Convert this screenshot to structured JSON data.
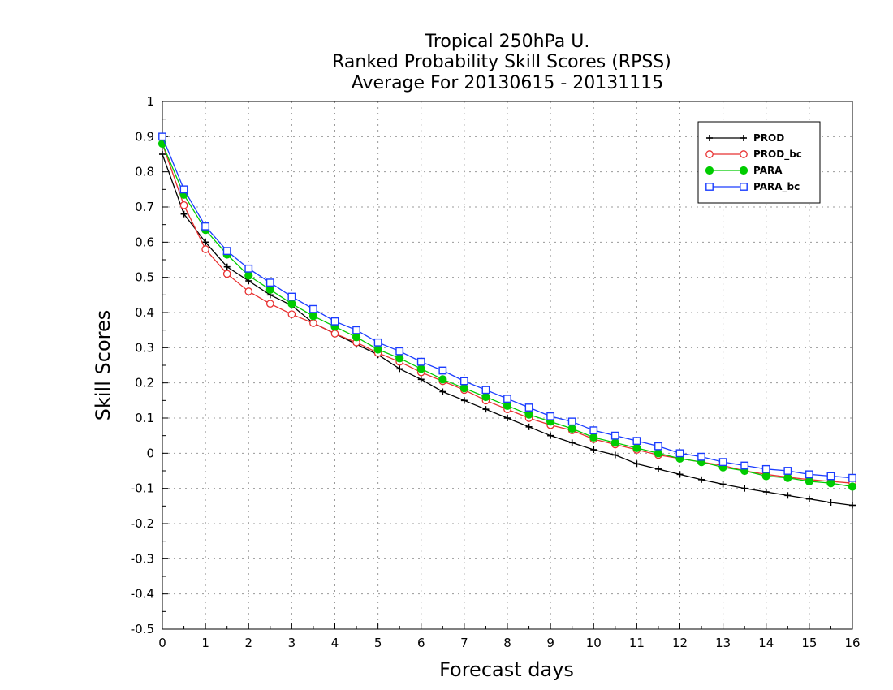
{
  "chart_data": {
    "type": "line",
    "title_lines": [
      "Tropical 250hPa U.",
      "Ranked Probability Skill Scores (RPSS)",
      "Average For 20130615 - 20131115"
    ],
    "xlabel": "Forecast days",
    "ylabel": "Skill Scores",
    "xlim": [
      0,
      16
    ],
    "ylim": [
      -0.5,
      1
    ],
    "x_ticks": [
      0,
      1,
      2,
      3,
      4,
      5,
      6,
      7,
      8,
      9,
      10,
      11,
      12,
      13,
      14,
      15,
      16
    ],
    "y_ticks": [
      -0.5,
      -0.4,
      -0.3,
      -0.2,
      -0.1,
      0,
      0.1,
      0.2,
      0.3,
      0.4,
      0.5,
      0.6,
      0.7,
      0.8,
      0.9,
      1
    ],
    "y_tick_labels": [
      "-0.5",
      "-0.4",
      "-0.3",
      "-0.2",
      "-0.1",
      "0",
      "0.1",
      "0.2",
      "0.3",
      "0.4",
      "0.5",
      "0.6",
      "0.7",
      "0.8",
      "0.9",
      "1"
    ],
    "grid": true,
    "legend_position": "top-right",
    "x": [
      0,
      0.5,
      1,
      1.5,
      2,
      2.5,
      3,
      3.5,
      4,
      4.5,
      5,
      5.5,
      6,
      6.5,
      7,
      7.5,
      8,
      8.5,
      9,
      9.5,
      10,
      10.5,
      11,
      11.5,
      12,
      12.5,
      13,
      13.5,
      14,
      14.5,
      15,
      15.5,
      16
    ],
    "series": [
      {
        "name": "PROD",
        "color": "#000000",
        "marker": "plus",
        "values": [
          0.85,
          0.68,
          0.6,
          0.53,
          0.49,
          0.45,
          0.42,
          0.37,
          0.34,
          0.31,
          0.28,
          0.24,
          0.21,
          0.175,
          0.15,
          0.125,
          0.1,
          0.075,
          0.05,
          0.03,
          0.01,
          -0.005,
          -0.03,
          -0.045,
          -0.06,
          -0.075,
          -0.088,
          -0.1,
          -0.11,
          -0.12,
          -0.13,
          -0.14,
          -0.148
        ]
      },
      {
        "name": "PROD_bc",
        "color": "#e83030",
        "marker": "open-circle",
        "values": [
          0.88,
          0.705,
          0.58,
          0.51,
          0.46,
          0.425,
          0.395,
          0.37,
          0.34,
          0.315,
          0.285,
          0.26,
          0.23,
          0.205,
          0.18,
          0.15,
          0.125,
          0.1,
          0.08,
          0.065,
          0.04,
          0.025,
          0.01,
          -0.005,
          -0.015,
          -0.025,
          -0.035,
          -0.05,
          -0.06,
          -0.068,
          -0.075,
          -0.08,
          -0.085
        ]
      },
      {
        "name": "PARA",
        "color": "#00cc00",
        "marker": "filled-circle",
        "values": [
          0.88,
          0.735,
          0.635,
          0.565,
          0.505,
          0.465,
          0.425,
          0.39,
          0.36,
          0.33,
          0.295,
          0.27,
          0.24,
          0.21,
          0.185,
          0.16,
          0.135,
          0.11,
          0.09,
          0.07,
          0.045,
          0.03,
          0.015,
          0.0,
          -0.015,
          -0.025,
          -0.04,
          -0.05,
          -0.065,
          -0.07,
          -0.08,
          -0.085,
          -0.095
        ]
      },
      {
        "name": "PARA_bc",
        "color": "#1a3cff",
        "marker": "open-square",
        "values": [
          0.9,
          0.75,
          0.645,
          0.575,
          0.525,
          0.485,
          0.445,
          0.41,
          0.375,
          0.35,
          0.315,
          0.29,
          0.26,
          0.235,
          0.205,
          0.18,
          0.155,
          0.13,
          0.105,
          0.09,
          0.065,
          0.05,
          0.035,
          0.02,
          0.0,
          -0.01,
          -0.025,
          -0.035,
          -0.045,
          -0.05,
          -0.06,
          -0.065,
          -0.07
        ]
      }
    ]
  }
}
